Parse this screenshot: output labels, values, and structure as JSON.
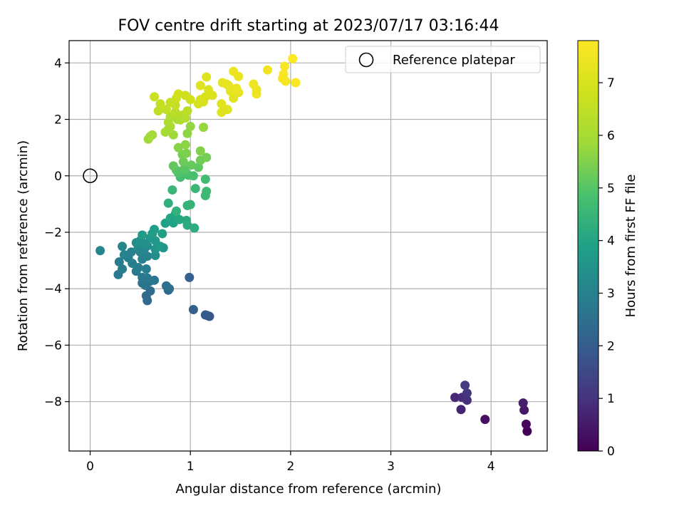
{
  "chart_data": {
    "type": "scatter",
    "title": "FOV centre drift starting at 2023/07/17 03:16:44",
    "xlabel": "Angular distance from reference (arcmin)",
    "ylabel": "Rotation from reference (arcmin)",
    "xlim": [
      -0.21,
      4.56
    ],
    "ylim": [
      -9.75,
      4.79
    ],
    "xticks": [
      "0",
      "1",
      "2",
      "3",
      "4"
    ],
    "yticks": [
      "−8",
      "−6",
      "−4",
      "−2",
      "0",
      "2",
      "4"
    ],
    "grid": true,
    "legend": {
      "position": "upper right",
      "label": "Reference platepar"
    },
    "reference_point": {
      "x": 0,
      "y": 0
    },
    "colorbar": {
      "label": "Hours from first FF file",
      "range": [
        0,
        7.8
      ],
      "ticks": [
        "0",
        "1",
        "2",
        "3",
        "4",
        "5",
        "6",
        "7"
      ],
      "colormap": "viridis"
    },
    "series": [
      {
        "points": [
          [
            4.36,
            -9.05,
            0.05
          ],
          [
            4.35,
            -8.8,
            0.15
          ],
          [
            3.94,
            -8.63,
            0.3
          ],
          [
            4.33,
            -8.3,
            0.45
          ],
          [
            4.32,
            -8.05,
            0.55
          ],
          [
            3.7,
            -8.28,
            0.7
          ],
          [
            3.64,
            -7.85,
            0.8
          ],
          [
            3.71,
            -7.85,
            0.9
          ],
          [
            3.76,
            -7.95,
            0.95
          ],
          [
            3.76,
            -7.7,
            1.05
          ],
          [
            3.74,
            -7.42,
            1.15
          ],
          [
            1.19,
            -4.98,
            1.8
          ],
          [
            1.17,
            -4.95,
            1.85
          ],
          [
            1.15,
            -4.93,
            1.9
          ],
          [
            1.03,
            -4.74,
            2.0
          ],
          [
            0.99,
            -3.6,
            2.1
          ],
          [
            0.78,
            -4.05,
            2.2
          ],
          [
            0.57,
            -4.42,
            2.3
          ],
          [
            0.56,
            -4.25,
            2.35
          ],
          [
            0.6,
            -4.08,
            2.4
          ],
          [
            0.79,
            -4.0,
            2.45
          ],
          [
            0.76,
            -3.9,
            2.5
          ],
          [
            0.52,
            -3.8,
            2.55
          ],
          [
            0.55,
            -3.88,
            2.6
          ],
          [
            0.59,
            -3.75,
            2.62
          ],
          [
            0.64,
            -3.7,
            2.65
          ],
          [
            0.52,
            -3.6,
            2.7
          ],
          [
            0.57,
            -3.62,
            2.72
          ],
          [
            0.28,
            -3.5,
            2.75
          ],
          [
            0.46,
            -3.38,
            2.8
          ],
          [
            0.32,
            -3.3,
            2.82
          ],
          [
            0.29,
            -3.05,
            2.85
          ],
          [
            0.48,
            -3.25,
            2.88
          ],
          [
            0.56,
            -3.3,
            2.9
          ],
          [
            0.42,
            -3.1,
            2.92
          ],
          [
            0.38,
            -2.9,
            2.95
          ],
          [
            0.52,
            -2.95,
            2.98
          ],
          [
            0.57,
            -2.85,
            3.0
          ],
          [
            0.34,
            -2.8,
            3.02
          ],
          [
            0.41,
            -2.7,
            3.05
          ],
          [
            0.5,
            -2.7,
            3.08
          ],
          [
            0.54,
            -2.6,
            3.1
          ],
          [
            0.1,
            -2.65,
            3.12
          ],
          [
            0.32,
            -2.5,
            3.15
          ],
          [
            0.48,
            -2.55,
            3.2
          ],
          [
            0.57,
            -2.48,
            3.25
          ],
          [
            0.65,
            -2.82,
            3.3
          ],
          [
            0.46,
            -2.37,
            3.35
          ],
          [
            0.5,
            -2.3,
            3.4
          ],
          [
            0.55,
            -2.4,
            3.45
          ],
          [
            0.65,
            -2.6,
            3.5
          ],
          [
            0.73,
            -2.55,
            3.55
          ],
          [
            0.6,
            -2.2,
            3.6
          ],
          [
            0.65,
            -2.3,
            3.65
          ],
          [
            0.7,
            -2.5,
            3.7
          ],
          [
            0.52,
            -2.1,
            3.72
          ],
          [
            0.62,
            -2.05,
            3.75
          ],
          [
            0.72,
            -2.05,
            3.8
          ],
          [
            0.64,
            -1.9,
            3.85
          ],
          [
            0.75,
            -1.68,
            3.9
          ],
          [
            0.83,
            -1.67,
            3.95
          ],
          [
            0.8,
            -1.5,
            4.0
          ],
          [
            0.85,
            -1.35,
            4.05
          ],
          [
            0.89,
            -1.55,
            4.1
          ],
          [
            0.96,
            -1.58,
            4.15
          ],
          [
            0.97,
            -1.75,
            4.2
          ],
          [
            1.04,
            -1.85,
            4.25
          ],
          [
            0.78,
            -0.97,
            4.3
          ],
          [
            0.86,
            -1.25,
            4.35
          ],
          [
            0.97,
            -1.05,
            4.4
          ],
          [
            1.0,
            -1.02,
            4.45
          ],
          [
            0.82,
            -0.5,
            4.5
          ],
          [
            1.05,
            -0.45,
            4.55
          ],
          [
            1.15,
            -0.7,
            4.6
          ],
          [
            1.16,
            -0.55,
            4.65
          ],
          [
            1.15,
            -0.12,
            4.7
          ],
          [
            0.9,
            -0.05,
            4.75
          ],
          [
            0.98,
            0.02,
            4.8
          ],
          [
            1.03,
            0.0,
            4.85
          ],
          [
            0.88,
            0.1,
            4.9
          ],
          [
            0.95,
            0.15,
            4.95
          ],
          [
            0.86,
            0.2,
            5.0
          ],
          [
            0.94,
            0.25,
            5.05
          ],
          [
            1.08,
            0.3,
            5.1
          ],
          [
            0.83,
            0.35,
            5.15
          ],
          [
            1.01,
            0.38,
            5.2
          ],
          [
            0.93,
            0.5,
            5.25
          ],
          [
            1.1,
            0.55,
            5.3
          ],
          [
            1.16,
            0.65,
            5.35
          ],
          [
            0.92,
            0.75,
            5.4
          ],
          [
            0.96,
            0.8,
            5.45
          ],
          [
            1.1,
            0.88,
            5.5
          ],
          [
            0.88,
            1.0,
            5.55
          ],
          [
            0.95,
            1.1,
            5.6
          ],
          [
            0.97,
            1.5,
            5.65
          ],
          [
            1.0,
            1.75,
            5.7
          ],
          [
            1.13,
            1.72,
            5.75
          ],
          [
            0.83,
            1.45,
            5.8
          ],
          [
            0.58,
            1.3,
            5.85
          ],
          [
            0.62,
            1.45,
            5.9
          ],
          [
            0.6,
            1.4,
            5.92
          ],
          [
            0.75,
            1.55,
            5.95
          ],
          [
            0.78,
            1.65,
            6.0
          ],
          [
            0.8,
            1.75,
            6.05
          ],
          [
            0.78,
            1.9,
            6.1
          ],
          [
            0.87,
            2.0,
            6.12
          ],
          [
            0.9,
            1.98,
            6.15
          ],
          [
            0.8,
            2.1,
            6.2
          ],
          [
            0.95,
            2.05,
            6.25
          ],
          [
            0.92,
            2.15,
            6.3
          ],
          [
            0.85,
            2.25,
            6.35
          ],
          [
            0.97,
            2.3,
            6.4
          ],
          [
            0.68,
            2.3,
            6.45
          ],
          [
            0.76,
            2.35,
            6.5
          ],
          [
            0.85,
            2.5,
            6.55
          ],
          [
            0.7,
            2.55,
            6.6
          ],
          [
            0.8,
            2.6,
            6.65
          ],
          [
            0.64,
            2.8,
            6.7
          ],
          [
            0.86,
            2.75,
            6.75
          ],
          [
            0.95,
            2.85,
            6.8
          ],
          [
            0.88,
            2.9,
            6.85
          ],
          [
            1.0,
            2.7,
            6.9
          ],
          [
            1.1,
            2.7,
            6.92
          ],
          [
            1.08,
            2.55,
            6.95
          ],
          [
            1.13,
            2.62,
            7.0
          ],
          [
            1.15,
            2.8,
            7.02
          ],
          [
            1.22,
            2.85,
            7.05
          ],
          [
            1.18,
            3.05,
            7.08
          ],
          [
            1.1,
            3.2,
            7.1
          ],
          [
            1.16,
            3.5,
            7.12
          ],
          [
            1.31,
            2.25,
            7.15
          ],
          [
            1.37,
            2.35,
            7.18
          ],
          [
            1.31,
            2.55,
            7.2
          ],
          [
            1.43,
            2.75,
            7.22
          ],
          [
            1.48,
            2.95,
            7.25
          ],
          [
            1.4,
            3.0,
            7.28
          ],
          [
            1.32,
            3.3,
            7.3
          ],
          [
            1.36,
            3.25,
            7.32
          ],
          [
            1.38,
            3.2,
            7.35
          ],
          [
            1.46,
            3.1,
            7.38
          ],
          [
            1.43,
            3.7,
            7.4
          ],
          [
            1.48,
            3.52,
            7.42
          ],
          [
            1.66,
            2.9,
            7.45
          ],
          [
            1.66,
            3.05,
            7.48
          ],
          [
            1.63,
            3.25,
            7.5
          ],
          [
            1.77,
            3.75,
            7.55
          ],
          [
            1.92,
            3.45,
            7.6
          ],
          [
            1.95,
            3.35,
            7.62
          ],
          [
            1.93,
            3.6,
            7.65
          ],
          [
            1.94,
            3.88,
            7.68
          ],
          [
            2.05,
            3.3,
            7.72
          ],
          [
            2.02,
            4.15,
            7.78
          ]
        ]
      }
    ]
  }
}
